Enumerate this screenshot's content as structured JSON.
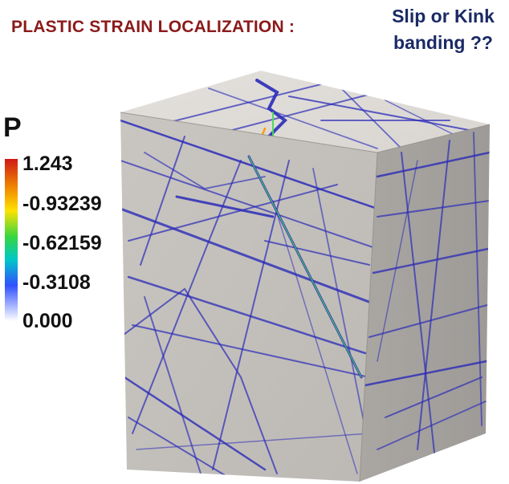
{
  "header": {
    "title": "PLASTIC STRAIN LOCALIZATION :",
    "question_line1": "Slip or Kink",
    "question_line2": "banding ??"
  },
  "legend": {
    "variable": "P",
    "ticks": [
      "1.243",
      "-0.93239",
      "-0.62159",
      "-0.3108",
      "0.000"
    ],
    "colormap": [
      "#d01818",
      "#f08a00",
      "#ffe200",
      "#36d640",
      "#00c8c8",
      "#3050ff",
      "#ffffff"
    ]
  },
  "colors": {
    "title": "#8b1a1a",
    "question": "#1b2a66",
    "band": "#2b2bb8",
    "cube_light": "#d4d1cc"
  }
}
